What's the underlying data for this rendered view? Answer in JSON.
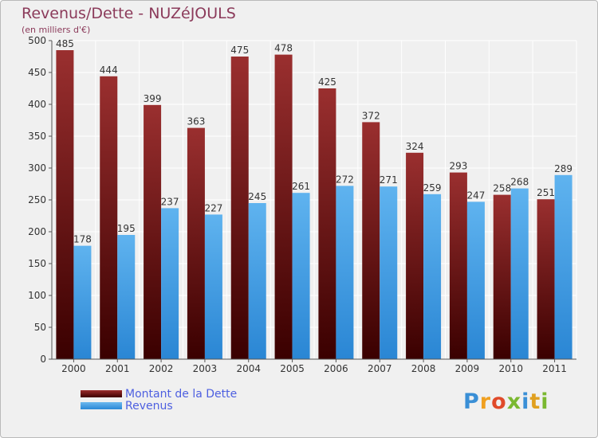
{
  "header": {
    "title": "Revenus/Dette - NUZéJOULS",
    "subtitle": "(en milliers d'€)"
  },
  "legend": {
    "items": [
      {
        "label": "Montant de la Dette"
      },
      {
        "label": "Revenus"
      }
    ]
  },
  "logo": {
    "text": "Proxiti",
    "letters": [
      "P",
      "r",
      "o",
      "x",
      "i",
      "t",
      "i"
    ],
    "colors": [
      "#3a8fd6",
      "#f0a020",
      "#e04a2a",
      "#7ab830",
      "#3a8fd6",
      "#e0a020",
      "#7ab830"
    ]
  },
  "chart_data": {
    "type": "bar",
    "categories": [
      "2000",
      "2001",
      "2002",
      "2003",
      "2004",
      "2005",
      "2006",
      "2007",
      "2008",
      "2009",
      "2010",
      "2011"
    ],
    "series": [
      {
        "name": "Montant de la Dette",
        "values": [
          485,
          444,
          399,
          363,
          475,
          478,
          425,
          372,
          324,
          293,
          258,
          251
        ],
        "color": "#7a1a1a"
      },
      {
        "name": "Revenus",
        "values": [
          178,
          195,
          237,
          227,
          245,
          261,
          272,
          271,
          259,
          247,
          268,
          289
        ],
        "color": "#4aa3e8"
      }
    ],
    "ylim": [
      0,
      500
    ],
    "yticks": [
      0,
      50,
      100,
      150,
      200,
      250,
      300,
      350,
      400,
      450,
      500
    ],
    "grid": true,
    "legend_position": "bottom-left"
  }
}
